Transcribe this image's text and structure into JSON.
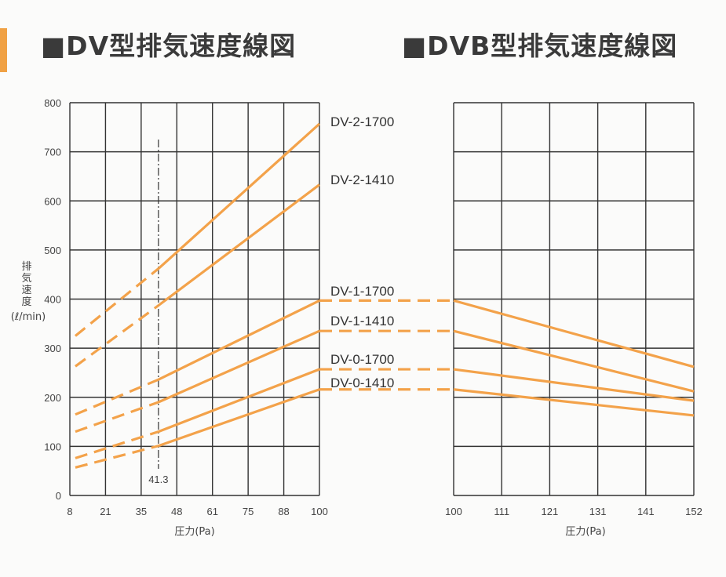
{
  "titles": {
    "left": "■DV型排気速度線図",
    "right": "■DVB型排気速度線図"
  },
  "colors": {
    "series": "#f3a24a",
    "grid": "#333333",
    "edge_bar": "#f0a144"
  },
  "chart_data": [
    {
      "type": "line",
      "title": "■DV型排気速度線図",
      "xlabel": "圧力(Pa)",
      "ylabel": "排気速度(ℓ/min)",
      "x_ticks": [
        8,
        21,
        35,
        48,
        61,
        75,
        88,
        100
      ],
      "y_ticks": [
        0,
        100,
        200,
        300,
        400,
        500,
        600,
        700,
        800
      ],
      "xlim": [
        8,
        100
      ],
      "ylim": [
        0,
        800
      ],
      "grid": true,
      "reference_line": {
        "x": 41.3,
        "label": "41.3"
      },
      "series": [
        {
          "name": "DV-2-1700",
          "dashed": [
            [
              10,
              325
            ],
            [
              41.3,
              462
            ]
          ],
          "solid": [
            [
              41.3,
              462
            ],
            [
              100,
              757
            ]
          ]
        },
        {
          "name": "DV-2-1410",
          "dashed": [
            [
              10,
              263
            ],
            [
              41.3,
              387
            ]
          ],
          "solid": [
            [
              41.3,
              387
            ],
            [
              100,
              633
            ]
          ]
        },
        {
          "name": "DV-1-1700",
          "dashed": [
            [
              10,
              165
            ],
            [
              41.3,
              236
            ]
          ],
          "solid": [
            [
              41.3,
              236
            ],
            [
              100,
              397
            ]
          ],
          "plateau": [
            [
              100,
              397
            ],
            [
              131.9,
              397
            ]
          ]
        },
        {
          "name": "DV-1-1410",
          "dashed": [
            [
              10,
              130
            ],
            [
              41.3,
              190
            ]
          ],
          "solid": [
            [
              41.3,
              190
            ],
            [
              100,
              335
            ]
          ],
          "plateau": [
            [
              100,
              335
            ],
            [
              131.9,
              335
            ]
          ]
        },
        {
          "name": "DV-0-1700",
          "dashed": [
            [
              10,
              76
            ],
            [
              41.3,
              130
            ]
          ],
          "solid": [
            [
              41.3,
              130
            ],
            [
              100,
              257
            ]
          ],
          "plateau": [
            [
              100,
              257
            ],
            [
              131.9,
              257
            ]
          ]
        },
        {
          "name": "DV-0-1410",
          "dashed": [
            [
              10,
              57
            ],
            [
              41.3,
              101
            ]
          ],
          "solid": [
            [
              41.3,
              101
            ],
            [
              100,
              216
            ]
          ],
          "plateau": [
            [
              100,
              216
            ],
            [
              131.9,
              216
            ]
          ]
        }
      ]
    },
    {
      "type": "line",
      "title": "■DVB型排気速度線図",
      "xlabel": "圧力(Pa)",
      "ylabel": "",
      "x_ticks": [
        100,
        111,
        121,
        131,
        141,
        152
      ],
      "xlim": [
        100,
        152
      ],
      "ylim": [
        0,
        800
      ],
      "grid": true,
      "series": [
        {
          "name": "DV-1-1700",
          "solid": [
            [
              100,
              397
            ],
            [
              152,
              262
            ]
          ]
        },
        {
          "name": "DV-1-1410",
          "solid": [
            [
              100,
              335
            ],
            [
              152,
              212
            ]
          ]
        },
        {
          "name": "DV-0-1700",
          "solid": [
            [
              100,
              257
            ],
            [
              152,
              193
            ]
          ]
        },
        {
          "name": "DV-0-1410",
          "solid": [
            [
              100,
              216
            ],
            [
              152,
              163
            ]
          ]
        }
      ]
    }
  ]
}
